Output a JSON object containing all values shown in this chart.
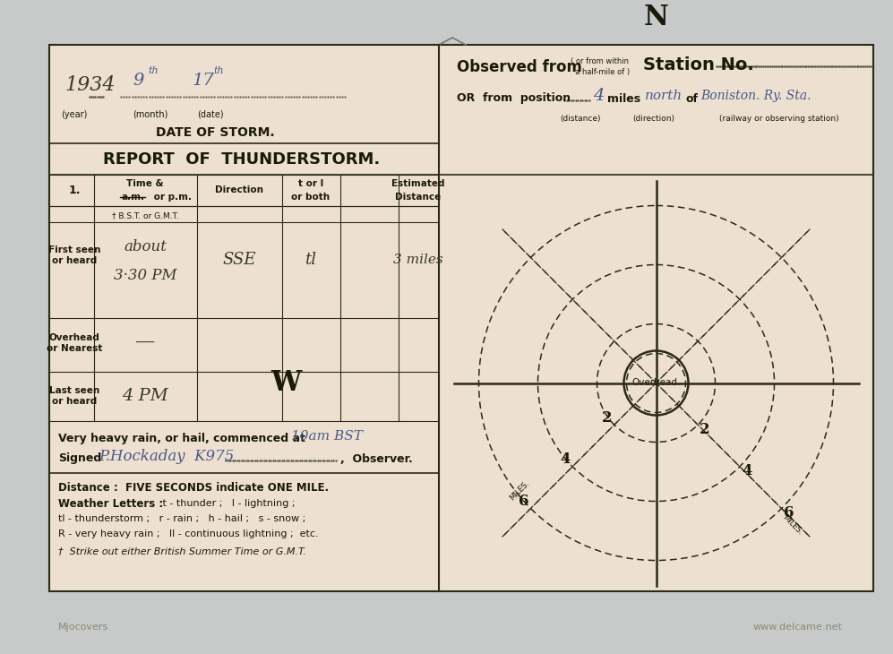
{
  "bg_card": "#ede0d0",
  "bg_page": "#c8caca",
  "year_text": "1934",
  "month_text": "9",
  "date_text": "17",
  "observed_from": "Observed from",
  "small_paren": "( or from within\n  a half-mile of )",
  "station_no": "Station No.",
  "or_from_position": "OR  from  position",
  "handw_miles": "4",
  "handw_direction": "north",
  "handw_railway": "Boniston. Ry. Sta.",
  "lbl_distance": "(distance)",
  "lbl_direction": "(direction)",
  "lbl_railway": "(railway or observing station)",
  "lbl_year": "(year)",
  "lbl_month": "(month)",
  "lbl_date": "(date)",
  "date_of_storm": "DATE OF STORM.",
  "report_title": "REPORT  OF  THUNDERSTORM.",
  "col_num": "1.",
  "col_time": "Time &",
  "col_am": "a.m.",
  "col_pm": " or p.m.",
  "col_direction": "Direction",
  "col_torl1": "t or l",
  "col_torl2": "or both",
  "col_est1": "Estimated",
  "col_est2": "Distance",
  "lbl_firstseen": "First seen\nor heard",
  "lbl_overhead": "Overhead\nor Nearest",
  "lbl_lastseen": "Last seen\nor heard",
  "bst_gmt": "† B.S.T. or G.M.T.",
  "hw_about": "about",
  "hw_time": "3·30 PM",
  "hw_direction": "SSE",
  "hw_type": "tl",
  "hw_distance": "3 miles",
  "hw_overhead_dash": "—",
  "hw_last": "4 PM",
  "extra1": "Very heavy rain, or hail, commenced at ",
  "extra1_hw": "10am BST",
  "signed_prefix": "Signed",
  "signed_hw": "P.Hockaday  K975",
  "signed_suffix": ",  Observer.",
  "note_distance": "Distance :  FIVE SECONDS indicate ONE MILE.",
  "note_wl_bold": "Weather Letters : ",
  "note_wl": " t - thunder ;   l - lightning ;",
  "note_wl2": "tl - thunderstorm ;   r - rain ;   h - hail ;   s - snow ;",
  "note_wl3": "R - very heavy rain ;   ll - continuous lightning ;  etc.",
  "note_footnote": "†  Strike out either British Summer Time or G.M.T.",
  "overhead_label": "Overhead.",
  "wm_left": "Mjocovers",
  "wm_right": "www.delcame.net",
  "card_color": "#ede0d0",
  "line_color": "#2a2a1a",
  "hw_color": "#3a3a2a",
  "ink_color": "#4a5a8a",
  "text_color": "#1a1a0a"
}
